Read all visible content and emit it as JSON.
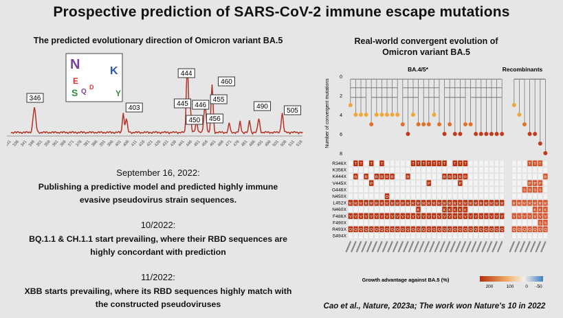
{
  "slide": {
    "title": "Prospective prediction of SARS-CoV-2 immune escape mutations",
    "left_title": "The predicted evolutionary direction of Omicron variant BA.5",
    "right_title_line1": "Real-world convergent evolution of",
    "right_title_line2": "Omicron variant BA.5",
    "sections": [
      {
        "date": "September 16, 2022:",
        "line1": "Publishing a predictive model and predicted highly immune",
        "line2": "evasive pseudovirus strain sequences."
      },
      {
        "date": "10/2022:",
        "line1": "BQ.1.1 & CH.1.1 start prevailing, where their RBD sequences are",
        "line2": "highly concordant with prediction"
      },
      {
        "date": "11/2022:",
        "line1": "XBB starts prevailing, where its RBD sequences highly match with",
        "line2": "the constructed pseudoviruses"
      }
    ],
    "citation": "Cao et al., Nature, 2023a; The work won Nature's 10 in 2022"
  },
  "chart_data": [
    {
      "type": "line",
      "peak_labels": [
        "346",
        "403",
        "444",
        "445",
        "446",
        "450",
        "455",
        "456",
        "460",
        "490",
        "505"
      ],
      "x_tick_labels": [
        "331",
        "336",
        "341",
        "346",
        "351",
        "356",
        "361",
        "366",
        "371",
        "376",
        "381",
        "386",
        "391",
        "396",
        "401",
        "406",
        "411",
        "416",
        "421",
        "426",
        "431",
        "436",
        "441",
        "446",
        "451",
        "456",
        "461",
        "466",
        "471",
        "476",
        "481",
        "486",
        "491",
        "496",
        "501",
        "506",
        "511",
        "516"
      ],
      "logo_letters": [
        "N",
        "E",
        "S",
        "Q",
        "D",
        "K",
        "Y"
      ]
    },
    {
      "type": "heatmap",
      "group_labels": [
        "BA.4/5*",
        "Recombinants"
      ],
      "y_axis_label": "Number of convergent mutations",
      "y_ticks": [
        "0",
        "2",
        "4",
        "6",
        "8"
      ],
      "mutations": [
        "R346X",
        "K356X",
        "K444X",
        "V445X",
        "G446X",
        "N450X",
        "L452X",
        "N460X",
        "F486X",
        "F490X",
        "R493X",
        "S494X"
      ],
      "colorbar_label": "Growth advantage against BA.5 (%)",
      "colorbar_ticks": [
        "200",
        "100",
        "0",
        "-50"
      ]
    }
  ]
}
